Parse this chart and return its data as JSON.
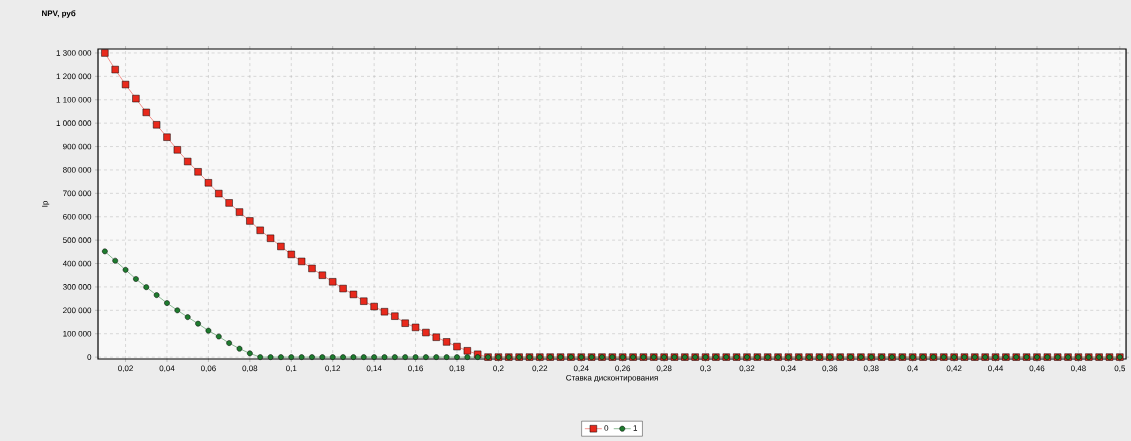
{
  "chart_data": {
    "type": "line",
    "title": "NPV, руб",
    "xlabel": "Ставка дисконтирования",
    "ylabel": "Ip",
    "x": [
      0.01,
      0.015,
      0.02,
      0.025,
      0.03,
      0.035,
      0.04,
      0.045,
      0.05,
      0.055,
      0.06,
      0.065,
      0.07,
      0.075,
      0.08,
      0.085,
      0.09,
      0.095,
      0.1,
      0.105,
      0.11,
      0.115,
      0.12,
      0.125,
      0.13,
      0.135,
      0.14,
      0.145,
      0.15,
      0.155,
      0.16,
      0.165,
      0.17,
      0.175,
      0.18,
      0.185,
      0.19,
      0.195,
      0.2,
      0.205,
      0.21,
      0.215,
      0.22,
      0.225,
      0.23,
      0.235,
      0.24,
      0.245,
      0.25,
      0.255,
      0.26,
      0.265,
      0.27,
      0.275,
      0.28,
      0.285,
      0.29,
      0.295,
      0.3,
      0.305,
      0.31,
      0.315,
      0.32,
      0.325,
      0.33,
      0.335,
      0.34,
      0.345,
      0.35,
      0.355,
      0.36,
      0.365,
      0.37,
      0.375,
      0.38,
      0.385,
      0.39,
      0.395,
      0.4,
      0.405,
      0.41,
      0.415,
      0.42,
      0.425,
      0.43,
      0.435,
      0.44,
      0.445,
      0.45,
      0.455,
      0.46,
      0.465,
      0.47,
      0.475,
      0.48,
      0.485,
      0.49,
      0.495,
      0.5
    ],
    "series": [
      {
        "name": "0",
        "color": "#e8291c",
        "marker": "square",
        "values": [
          1300000,
          1229000,
          1165000,
          1105000,
          1046000,
          993000,
          940000,
          886000,
          836000,
          792000,
          745000,
          699000,
          659000,
          620000,
          582000,
          542000,
          508000,
          473000,
          439000,
          409000,
          379000,
          350000,
          322000,
          293000,
          268000,
          239000,
          216000,
          194000,
          175000,
          145000,
          127000,
          105000,
          85000,
          65000,
          45000,
          27000,
          12000,
          0,
          0,
          0,
          0,
          0,
          0,
          0,
          0,
          0,
          0,
          0,
          0,
          0,
          0,
          0,
          0,
          0,
          0,
          0,
          0,
          0,
          0,
          0,
          0,
          0,
          0,
          0,
          0,
          0,
          0,
          0,
          0,
          0,
          0,
          0,
          0,
          0,
          0,
          0,
          0,
          0,
          0,
          0,
          0,
          0,
          0,
          0,
          0,
          0,
          0,
          0,
          0,
          0,
          0,
          0,
          0,
          0,
          0,
          0,
          0,
          0,
          0
        ]
      },
      {
        "name": "1",
        "color": "#1e7b2e",
        "marker": "circle",
        "values": [
          452000,
          412000,
          373000,
          334000,
          299000,
          265000,
          231000,
          200000,
          171000,
          143000,
          113000,
          88000,
          60000,
          36000,
          16000,
          0,
          0,
          0,
          0,
          0,
          0,
          0,
          0,
          0,
          0,
          0,
          0,
          0,
          0,
          0,
          0,
          0,
          0,
          0,
          0,
          0,
          0,
          0,
          0,
          0,
          0,
          0,
          0,
          0,
          0,
          0,
          0,
          0,
          0,
          0,
          0,
          0,
          0,
          0,
          0,
          0,
          0,
          0,
          0,
          0,
          0,
          0,
          0,
          0,
          0,
          0,
          0,
          0,
          0,
          0,
          0,
          0,
          0,
          0,
          0,
          0,
          0,
          0,
          0,
          0,
          0,
          0,
          0,
          0,
          0,
          0,
          0,
          0,
          0,
          0,
          0,
          0,
          0,
          0,
          0,
          0,
          0,
          0,
          0
        ]
      }
    ],
    "xlim": [
      0.0067,
      0.503
    ],
    "ylim": [
      -8000,
      1317000
    ],
    "xticks": [
      {
        "value": 0.02,
        "label": "0,02"
      },
      {
        "value": 0.04,
        "label": "0,04"
      },
      {
        "value": 0.06,
        "label": "0,06"
      },
      {
        "value": 0.08,
        "label": "0,08"
      },
      {
        "value": 0.1,
        "label": "0,1"
      },
      {
        "value": 0.12,
        "label": "0,12"
      },
      {
        "value": 0.14,
        "label": "0,14"
      },
      {
        "value": 0.16,
        "label": "0,16"
      },
      {
        "value": 0.18,
        "label": "0,18"
      },
      {
        "value": 0.2,
        "label": "0,2"
      },
      {
        "value": 0.22,
        "label": "0,22"
      },
      {
        "value": 0.24,
        "label": "0,24"
      },
      {
        "value": 0.26,
        "label": "0,26"
      },
      {
        "value": 0.28,
        "label": "0,28"
      },
      {
        "value": 0.3,
        "label": "0,3"
      },
      {
        "value": 0.32,
        "label": "0,32"
      },
      {
        "value": 0.34,
        "label": "0,34"
      },
      {
        "value": 0.36,
        "label": "0,36"
      },
      {
        "value": 0.38,
        "label": "0,38"
      },
      {
        "value": 0.4,
        "label": "0,4"
      },
      {
        "value": 0.42,
        "label": "0,42"
      },
      {
        "value": 0.44,
        "label": "0,44"
      },
      {
        "value": 0.46,
        "label": "0,46"
      },
      {
        "value": 0.48,
        "label": "0,48"
      },
      {
        "value": 0.5,
        "label": "0,5"
      }
    ],
    "yticks": [
      0,
      {
        "value": 100000,
        "label": "100 000"
      },
      {
        "value": 200000,
        "label": "200 000"
      },
      {
        "value": 300000,
        "label": "300 000"
      },
      {
        "value": 400000,
        "label": "400 000"
      },
      {
        "value": 500000,
        "label": "500 000"
      },
      {
        "value": 600000,
        "label": "600 000"
      },
      {
        "value": 700000,
        "label": "700 000"
      },
      {
        "value": 800000,
        "label": "800 000"
      },
      {
        "value": 900000,
        "label": "900 000"
      },
      {
        "value": 1000000,
        "label": "1 000 000"
      },
      {
        "value": 1100000,
        "label": "1 100 000"
      },
      {
        "value": 1200000,
        "label": "1 200 000"
      },
      {
        "value": 1300000,
        "label": "1 300 000"
      }
    ],
    "grid": true,
    "legend": "bottom",
    "line_style": "solid"
  }
}
